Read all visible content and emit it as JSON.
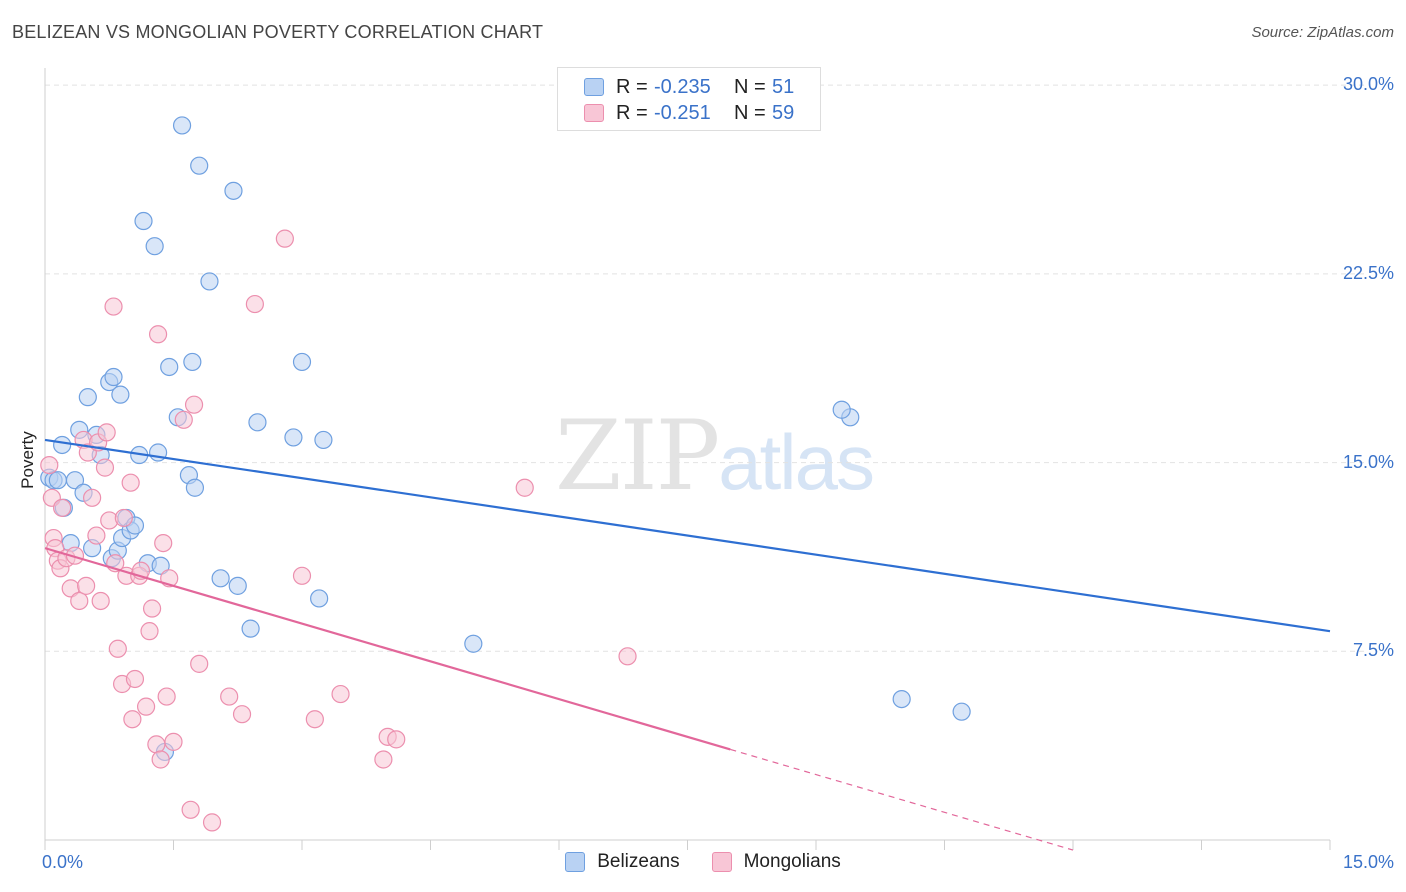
{
  "header": {
    "title": "BELIZEAN VS MONGOLIAN POVERTY CORRELATION CHART",
    "source": "Source: ZipAtlas.com"
  },
  "legend": {
    "rows": [
      {
        "r_label": "R =",
        "r_value": "-0.235",
        "n_label": "N =",
        "n_value": "51",
        "color": "#6fa0e0"
      },
      {
        "r_label": "R =",
        "r_value": "-0.251",
        "n_label": "N =",
        "n_value": "59",
        "color": "#ec8fae"
      }
    ]
  },
  "bottom_legend": [
    "Belizeans",
    "Mongolians"
  ],
  "watermark": {
    "zip": "ZIP",
    "atlas": "atlas"
  },
  "colors": {
    "belizeans_fill": "#b9d2f3",
    "belizeans_stroke": "#6fa0e0",
    "belizeans_line": "#2e6fd2",
    "mongolians_fill": "#f8c6d6",
    "mongolians_stroke": "#ec8fae",
    "mongolians_line": "#e2679a",
    "tick_text": "#3a72c9"
  },
  "chart_data": {
    "type": "scatter",
    "title": "BELIZEAN VS MONGOLIAN POVERTY CORRELATION CHART",
    "xlabel": "",
    "ylabel": "Poverty",
    "xlim": [
      0,
      15
    ],
    "ylim": [
      0,
      31
    ],
    "x_tick_labels": [
      "0.0%",
      "15.0%"
    ],
    "y_ticks": [
      7.5,
      15,
      22.5,
      30
    ],
    "y_tick_labels": [
      "7.5%",
      "15.0%",
      "22.5%",
      "30.0%"
    ],
    "grid": "horizontal dashed",
    "legend_position": "top-center",
    "series": [
      {
        "name": "Belizeans",
        "r": -0.235,
        "n": 51,
        "trend": {
          "x": [
            0,
            15
          ],
          "y": [
            15.9,
            8.3
          ],
          "dashed_from": null
        },
        "points": [
          [
            0.05,
            14.4
          ],
          [
            0.1,
            14.3
          ],
          [
            0.15,
            14.3
          ],
          [
            0.2,
            15.7
          ],
          [
            0.22,
            13.2
          ],
          [
            0.3,
            11.8
          ],
          [
            0.35,
            14.3
          ],
          [
            0.4,
            16.3
          ],
          [
            0.45,
            13.8
          ],
          [
            0.5,
            17.6
          ],
          [
            0.55,
            11.6
          ],
          [
            0.6,
            16.1
          ],
          [
            0.65,
            15.3
          ],
          [
            0.75,
            18.2
          ],
          [
            0.78,
            11.2
          ],
          [
            0.8,
            18.4
          ],
          [
            0.85,
            11.5
          ],
          [
            0.88,
            17.7
          ],
          [
            0.9,
            12.0
          ],
          [
            0.95,
            12.8
          ],
          [
            1.0,
            12.3
          ],
          [
            1.05,
            12.5
          ],
          [
            1.1,
            15.3
          ],
          [
            1.15,
            24.6
          ],
          [
            1.2,
            11.0
          ],
          [
            1.28,
            23.6
          ],
          [
            1.32,
            15.4
          ],
          [
            1.35,
            10.9
          ],
          [
            1.4,
            3.5
          ],
          [
            1.45,
            18.8
          ],
          [
            1.55,
            16.8
          ],
          [
            1.6,
            28.4
          ],
          [
            1.68,
            14.5
          ],
          [
            1.72,
            19.0
          ],
          [
            1.75,
            14.0
          ],
          [
            1.8,
            26.8
          ],
          [
            1.92,
            22.2
          ],
          [
            2.05,
            10.4
          ],
          [
            2.2,
            25.8
          ],
          [
            2.25,
            10.1
          ],
          [
            2.4,
            8.4
          ],
          [
            2.48,
            16.6
          ],
          [
            2.9,
            16.0
          ],
          [
            3.0,
            19.0
          ],
          [
            3.2,
            9.6
          ],
          [
            3.25,
            15.9
          ],
          [
            5.0,
            7.8
          ],
          [
            9.4,
            16.8
          ],
          [
            9.3,
            17.1
          ],
          [
            10.0,
            5.6
          ],
          [
            10.7,
            5.1
          ]
        ]
      },
      {
        "name": "Mongolians",
        "r": -0.251,
        "n": 59,
        "trend": {
          "x": [
            0,
            12
          ],
          "y": [
            11.6,
            -0.4
          ],
          "dashed_from": 8.0
        },
        "points": [
          [
            0.05,
            14.9
          ],
          [
            0.08,
            13.6
          ],
          [
            0.1,
            12.0
          ],
          [
            0.12,
            11.6
          ],
          [
            0.15,
            11.1
          ],
          [
            0.18,
            10.8
          ],
          [
            0.2,
            13.2
          ],
          [
            0.25,
            11.2
          ],
          [
            0.3,
            10.0
          ],
          [
            0.35,
            11.3
          ],
          [
            0.4,
            9.5
          ],
          [
            0.45,
            15.9
          ],
          [
            0.48,
            10.1
          ],
          [
            0.5,
            15.4
          ],
          [
            0.55,
            13.6
          ],
          [
            0.6,
            12.1
          ],
          [
            0.62,
            15.8
          ],
          [
            0.65,
            9.5
          ],
          [
            0.7,
            14.8
          ],
          [
            0.72,
            16.2
          ],
          [
            0.75,
            12.7
          ],
          [
            0.8,
            21.2
          ],
          [
            0.82,
            11.0
          ],
          [
            0.85,
            7.6
          ],
          [
            0.9,
            6.2
          ],
          [
            0.92,
            12.8
          ],
          [
            0.95,
            10.5
          ],
          [
            1.0,
            14.2
          ],
          [
            1.02,
            4.8
          ],
          [
            1.05,
            6.4
          ],
          [
            1.1,
            10.5
          ],
          [
            1.12,
            10.7
          ],
          [
            1.18,
            5.3
          ],
          [
            1.22,
            8.3
          ],
          [
            1.25,
            9.2
          ],
          [
            1.3,
            3.8
          ],
          [
            1.32,
            20.1
          ],
          [
            1.35,
            3.2
          ],
          [
            1.38,
            11.8
          ],
          [
            1.42,
            5.7
          ],
          [
            1.45,
            10.4
          ],
          [
            1.5,
            3.9
          ],
          [
            1.62,
            16.7
          ],
          [
            1.7,
            1.2
          ],
          [
            1.74,
            17.3
          ],
          [
            1.8,
            7.0
          ],
          [
            1.95,
            0.7
          ],
          [
            2.15,
            5.7
          ],
          [
            2.3,
            5.0
          ],
          [
            2.45,
            21.3
          ],
          [
            2.8,
            23.9
          ],
          [
            3.0,
            10.5
          ],
          [
            3.15,
            4.8
          ],
          [
            3.45,
            5.8
          ],
          [
            3.95,
            3.2
          ],
          [
            4.0,
            4.1
          ],
          [
            4.1,
            4.0
          ],
          [
            5.6,
            14.0
          ],
          [
            6.8,
            7.3
          ]
        ]
      }
    ]
  }
}
